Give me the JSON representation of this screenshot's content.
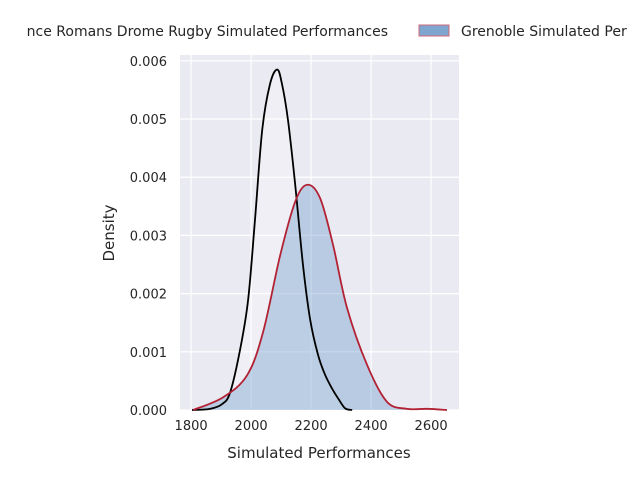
{
  "chart_data": {
    "type": "area",
    "title": "",
    "xlabel": "Simulated Performances",
    "ylabel": "Density",
    "xlim": [
      1763,
      2693
    ],
    "ylim": [
      0,
      0.0061
    ],
    "xticks": [
      1800,
      2000,
      2200,
      2400,
      2600
    ],
    "xtick_labels": [
      "1800",
      "2000",
      "2200",
      "2400",
      "2600"
    ],
    "yticks": [
      0,
      0.001,
      0.002,
      0.003,
      0.004,
      0.005,
      0.006
    ],
    "ytick_labels": [
      "0.000",
      "0.001",
      "0.002",
      "0.003",
      "0.004",
      "0.005",
      "0.006"
    ],
    "grid": true,
    "legend_placement": "top-center-outside",
    "series": [
      {
        "name": "nce Romans Drome Rugby Simulated Performances",
        "color": "#000000",
        "fill": "#ffffff",
        "x": [
          1803,
          1863,
          1903,
          1930,
          1963,
          1990,
          2013,
          2037,
          2063,
          2087,
          2103,
          2123,
          2147,
          2173,
          2197,
          2223,
          2247,
          2273,
          2290,
          2313,
          2337
        ],
        "y": [
          0,
          2e-05,
          0.0001,
          0.0003,
          0.00103,
          0.00189,
          0.00327,
          0.00481,
          0.0056,
          0.00585,
          0.0056,
          0.00498,
          0.00387,
          0.00249,
          0.00155,
          0.00095,
          0.0006,
          0.00034,
          0.0002,
          3e-05,
          0
        ]
      },
      {
        "name": "Grenoble Simulated Per",
        "color": "#b22234",
        "fill": "#7ea6cf",
        "x": [
          1807,
          1907,
          1987,
          2040,
          2097,
          2147,
          2187,
          2230,
          2273,
          2320,
          2387,
          2453,
          2520,
          2587,
          2653
        ],
        "y": [
          0,
          0.00022,
          0.0006,
          0.00134,
          0.00266,
          0.00358,
          0.00387,
          0.00364,
          0.00284,
          0.00175,
          0.00077,
          0.00014,
          2e-05,
          2e-05,
          0
        ]
      }
    ]
  }
}
